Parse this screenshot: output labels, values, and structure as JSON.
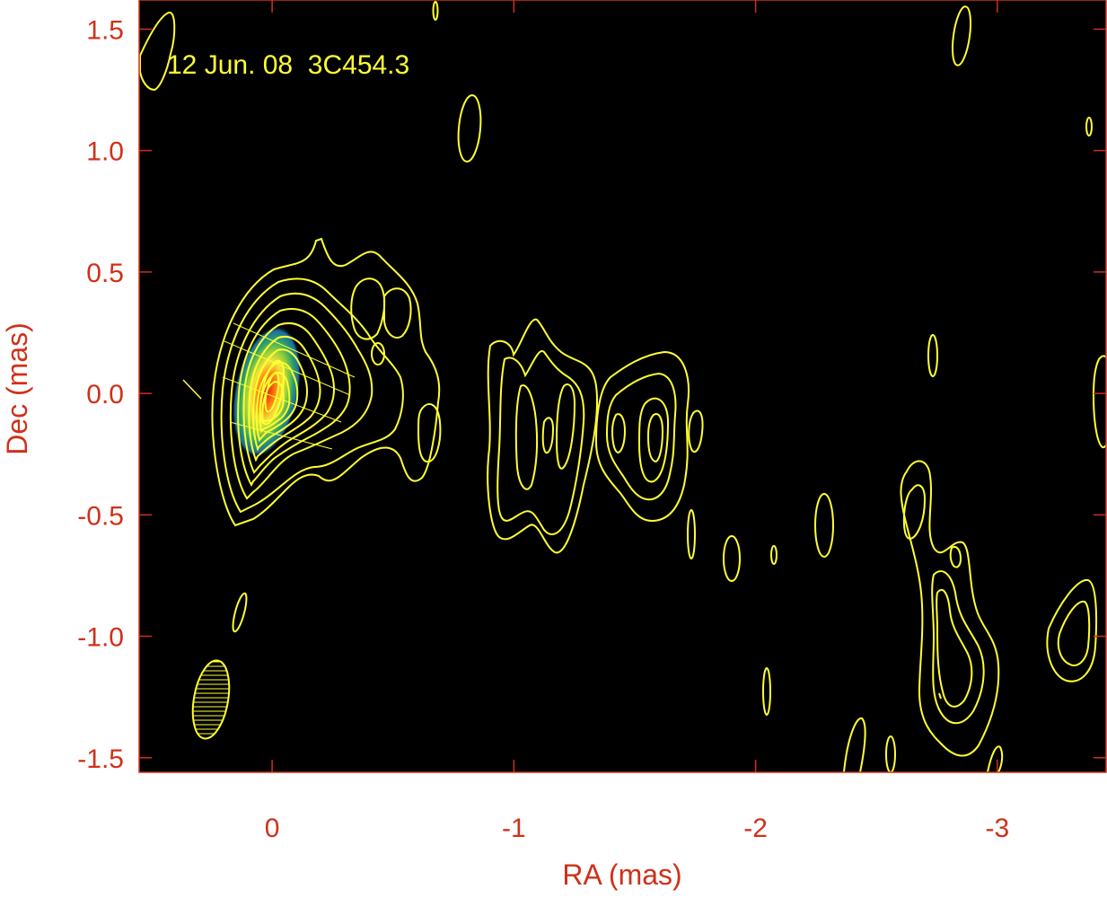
{
  "chart_data": {
    "type": "heatmap",
    "title": "12 Jun. 08  3C454.3",
    "xlabel": "RA (mas)",
    "ylabel": "Dec (mas)",
    "xlim": [
      0.55,
      -3.45
    ],
    "ylim": [
      -1.56,
      1.62
    ],
    "x_ticks": [
      0,
      -1,
      -2,
      -3
    ],
    "x_tick_labels": [
      "0",
      "-1",
      "-2",
      "-3"
    ],
    "y_ticks": [
      1.5,
      1.0,
      0.5,
      0.0,
      -0.5,
      -1.0,
      -1.5
    ],
    "y_tick_labels": [
      "1.5",
      "1.0",
      "0.5",
      "0.0",
      "-0.5",
      "-1.0",
      "-1.5"
    ],
    "grid": false,
    "colors": {
      "background": "#000000",
      "axis_text": "#d0301a",
      "contours": "#ffff33",
      "title_text": "#ffff33",
      "frame": "#d0301a"
    },
    "core": {
      "ra": 0.03,
      "dec": 0.02,
      "peak_colormap": [
        "#d02010",
        "#ff9a1a",
        "#f5e23a",
        "#9bd13b",
        "#2ea36a",
        "#1f6fa0"
      ]
    },
    "core_contour_levels": 14,
    "beam": {
      "ra": 0.3,
      "dec": -1.25,
      "major_mas": 0.33,
      "minor_mas": 0.15,
      "pa_deg": 10
    },
    "features": [
      {
        "name": "jet-knot-1",
        "ra": -0.45,
        "dec": 0.1,
        "levels": 3
      },
      {
        "name": "jet-knot-2",
        "ra": -1.07,
        "dec": -0.1,
        "levels": 3
      },
      {
        "name": "jet-knot-3",
        "ra": -1.58,
        "dec": -0.15,
        "levels": 4
      },
      {
        "name": "jet-knot-4",
        "ra": -2.72,
        "dec": -1.0,
        "levels": 3
      },
      {
        "name": "outer-blob-east",
        "ra": -3.3,
        "dec": -1.08,
        "levels": 2
      }
    ]
  }
}
